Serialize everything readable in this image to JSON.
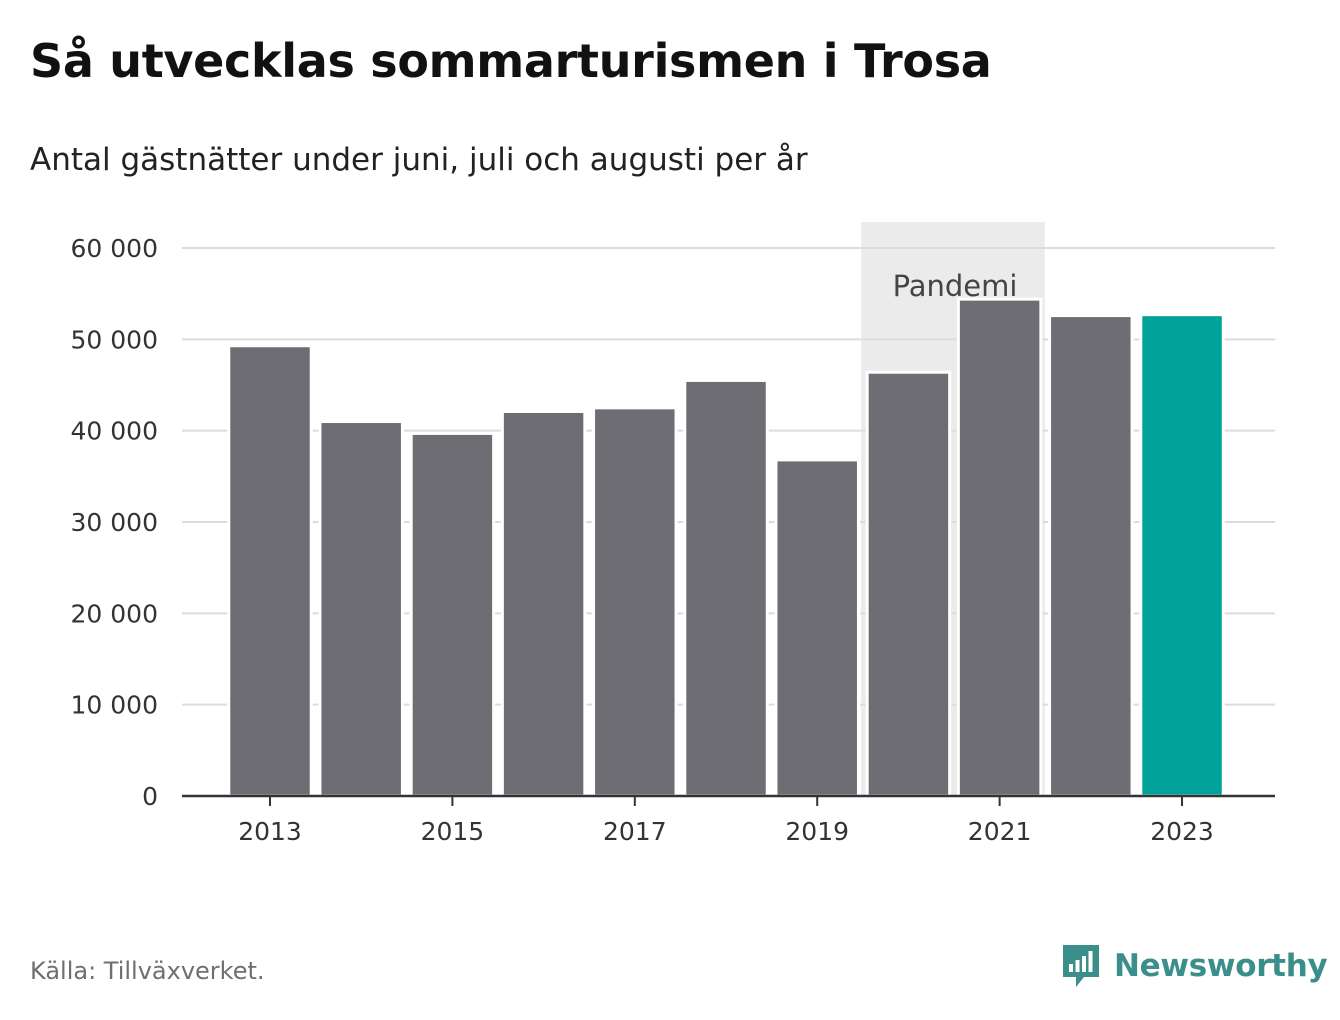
{
  "title": "Så utvecklas sommarturismen i Trosa",
  "subtitle": "Antal gästnätter under juni, juli och augusti per år",
  "source": "Källa: Tillväxverket.",
  "brand": {
    "name": "Newsworthy",
    "icon": "newsworthy-logo-icon",
    "color": "#3a8f8b"
  },
  "chart_data": {
    "type": "bar",
    "categories": [
      "2013",
      "2014",
      "2015",
      "2016",
      "2017",
      "2018",
      "2019",
      "2020",
      "2021",
      "2022",
      "2023"
    ],
    "values": [
      49300,
      41000,
      39700,
      42100,
      42500,
      45500,
      36800,
      46400,
      54400,
      52600,
      52700
    ],
    "x_tick_labels": [
      "2013",
      "2015",
      "2017",
      "2019",
      "2021",
      "2023"
    ],
    "y_ticks": [
      {
        "value": 0,
        "label": "0"
      },
      {
        "value": 10000,
        "label": "10 000"
      },
      {
        "value": 20000,
        "label": "20 000"
      },
      {
        "value": 30000,
        "label": "30 000"
      },
      {
        "value": 40000,
        "label": "40 000"
      },
      {
        "value": 50000,
        "label": "50 000"
      },
      {
        "value": 60000,
        "label": "60 000"
      }
    ],
    "ylim": [
      0,
      60000
    ],
    "xlabel": "",
    "ylabel": "",
    "grid": true,
    "highlight": {
      "category": "2023",
      "color": "#00a39a"
    },
    "bar_color": "#6e6d73",
    "annotation": {
      "label": "Pandemi",
      "from": "2020",
      "to": "2021",
      "color": "#ebebeb"
    }
  }
}
